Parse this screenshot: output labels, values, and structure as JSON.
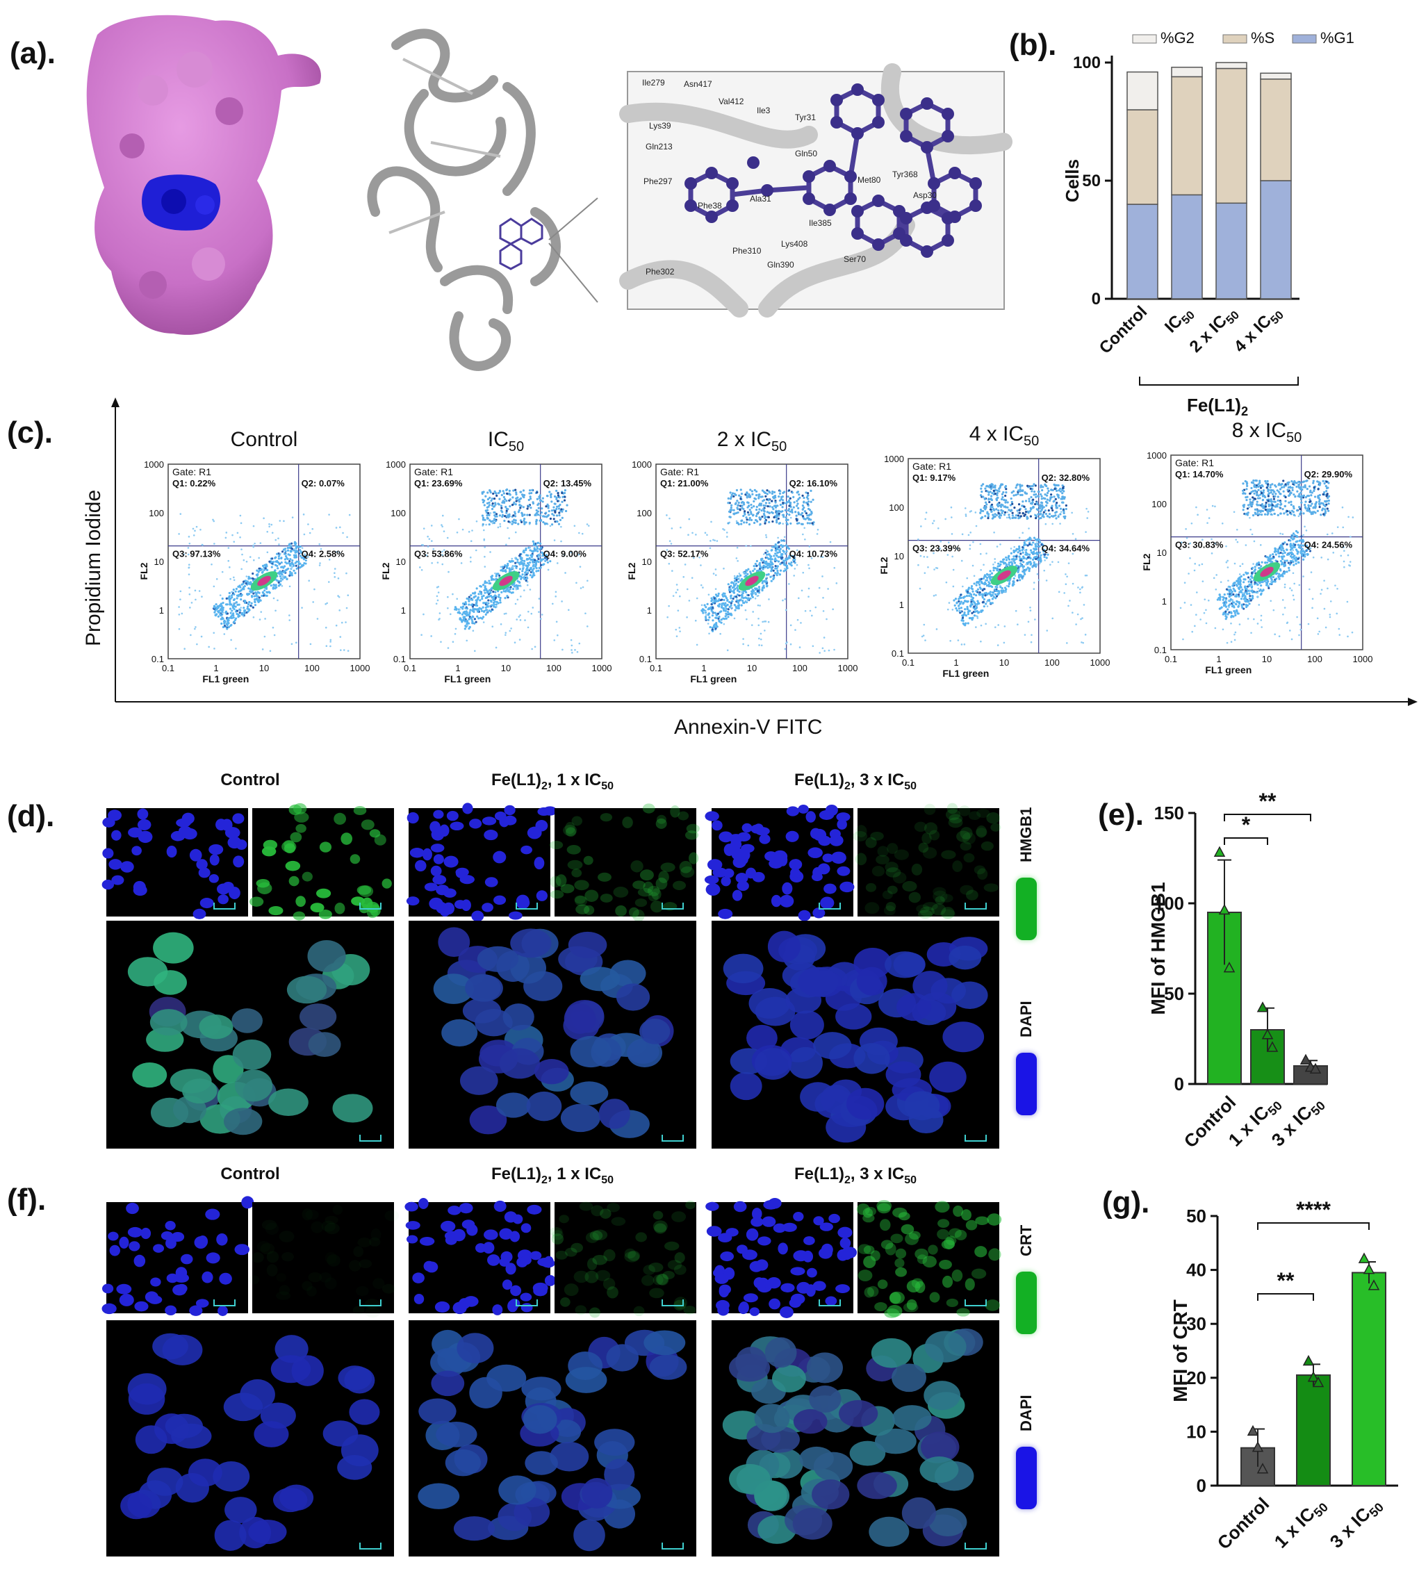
{
  "labels": {
    "a": "(a).",
    "b": "(b).",
    "c": "(c).",
    "d": "(d).",
    "e": "(e).",
    "f": "(f).",
    "g": "(g)."
  },
  "panel_a": {
    "residues": [
      "Ile279",
      "Asn417",
      "Val412",
      "Ile3",
      "Tyr31",
      "Gln213",
      "Phe297",
      "Ala31",
      "Gln50",
      "Phe38",
      "Phe310",
      "Lys408",
      "Ile385",
      "Gln390",
      "Phe302",
      "Ser70",
      "Tyr368",
      "Asp30",
      "Met80",
      "Lys39"
    ]
  },
  "panel_b": {
    "ylabel": "Cells",
    "group_label": "Fe(L1)",
    "group_sub": "2",
    "legend": [
      "%G2",
      "%S",
      "%G1"
    ],
    "ticks_y": [
      "0",
      "50",
      "100"
    ],
    "colors": {
      "G2": "#f1efec",
      "S": "#dfd2bd",
      "G1": "#9fb1da"
    }
  },
  "chart_data": [
    {
      "type": "bar",
      "stacked": true,
      "categories": [
        "Control",
        "IC50",
        "2 x IC50",
        "4 x IC50"
      ],
      "series": [
        {
          "name": "%G1",
          "values": [
            40,
            44,
            40.5,
            50
          ]
        },
        {
          "name": "%S",
          "values": [
            40,
            50,
            57,
            43
          ]
        },
        {
          "name": "%G2",
          "values": [
            16,
            4,
            2.5,
            2.5
          ]
        }
      ],
      "ylabel": "Cells",
      "ylim": [
        0,
        100
      ]
    },
    {
      "type": "bar",
      "categories": [
        "Control",
        "1 x IC50",
        "3 x IC50"
      ],
      "values": [
        95,
        30,
        10
      ],
      "errors": [
        29,
        12,
        3
      ],
      "points": [
        [
          128,
          96,
          64
        ],
        [
          42,
          27,
          20
        ],
        [
          13,
          9,
          8
        ]
      ],
      "ylabel": "MFI of HMGB1",
      "ylim": [
        0,
        150
      ],
      "significance": [
        "*",
        "**"
      ]
    },
    {
      "type": "bar",
      "categories": [
        "Control",
        "1 x IC50",
        "3 x IC50"
      ],
      "values": [
        7,
        20.5,
        39.5
      ],
      "errors": [
        3.5,
        2,
        2
      ],
      "points": [
        [
          10,
          7,
          3
        ],
        [
          23,
          20,
          19
        ],
        [
          42,
          40,
          37
        ]
      ],
      "ylabel": "MFI of CRT",
      "ylim": [
        0,
        50
      ],
      "significance": [
        "**",
        "****"
      ]
    }
  ],
  "panel_c": {
    "ylabel": "Propidium Iodide",
    "xlabel": "Annexin-V FITC",
    "x_axis": "FL1 green",
    "y_axis": "FL2",
    "gate": "Gate: R1",
    "ticks": [
      "0.1",
      "1",
      "10",
      "100",
      "1000"
    ],
    "plots": [
      {
        "title": "Control",
        "sub": "",
        "q1": "Q1: 0.22%",
        "q2": "Q2: 0.07%",
        "q3": "Q3: 97.13%",
        "q4": "Q4: 2.58%"
      },
      {
        "title": "IC",
        "sub": "50",
        "q1": "Q1: 23.69%",
        "q2": "Q2: 13.45%",
        "q3": "Q3: 53.86%",
        "q4": "Q4: 9.00%"
      },
      {
        "title": "2 x IC",
        "sub": "50",
        "q1": "Q1: 21.00%",
        "q2": "Q2: 16.10%",
        "q3": "Q3: 52.17%",
        "q4": "Q4: 10.73%"
      },
      {
        "title": "4 x IC",
        "sub": "50",
        "q1": "Q1: 9.17%",
        "q2": "Q2: 32.80%",
        "q3": "Q3: 23.39%",
        "q4": "Q4: 34.64%"
      },
      {
        "title": "8 x IC",
        "sub": "50",
        "q1": "Q1: 14.70%",
        "q2": "Q2: 29.90%",
        "q3": "Q3: 30.83%",
        "q4": "Q4: 24.56%"
      }
    ]
  },
  "panel_d": {
    "headers": [
      "Control",
      "Fe(L1)",
      "Fe(L1)"
    ],
    "header_mid": [
      "",
      "2",
      "2"
    ],
    "header_suffix": [
      "",
      ", 1 x IC",
      ", 3 x IC"
    ],
    "header_sub": [
      "",
      "50",
      "50"
    ],
    "stain1": "HMGB1",
    "stain2": "DAPI"
  },
  "panel_f": {
    "headers": [
      "Control",
      "Fe(L1)",
      "Fe(L1)"
    ],
    "header_mid": [
      "",
      "2",
      "2"
    ],
    "header_suffix": [
      "",
      ", 1 x IC",
      ", 3 x IC"
    ],
    "header_sub": [
      "",
      "50",
      "50"
    ],
    "stain1": "CRT",
    "stain2": "DAPI"
  },
  "panel_e": {
    "ylabel": "MFI of HMGB1",
    "ticks_y": [
      "0",
      "50",
      "100",
      "150"
    ],
    "sig1": "*",
    "sig2": "**"
  },
  "panel_g": {
    "ylabel": "MFI of CRT",
    "ticks_y": [
      "0",
      "10",
      "20",
      "30",
      "40",
      "50"
    ],
    "sig1": "**",
    "sig2": "****"
  },
  "bar_categories": {
    "c1": "Control",
    "c2": "1 x IC",
    "c3": "3 x IC",
    "sub": "50"
  }
}
